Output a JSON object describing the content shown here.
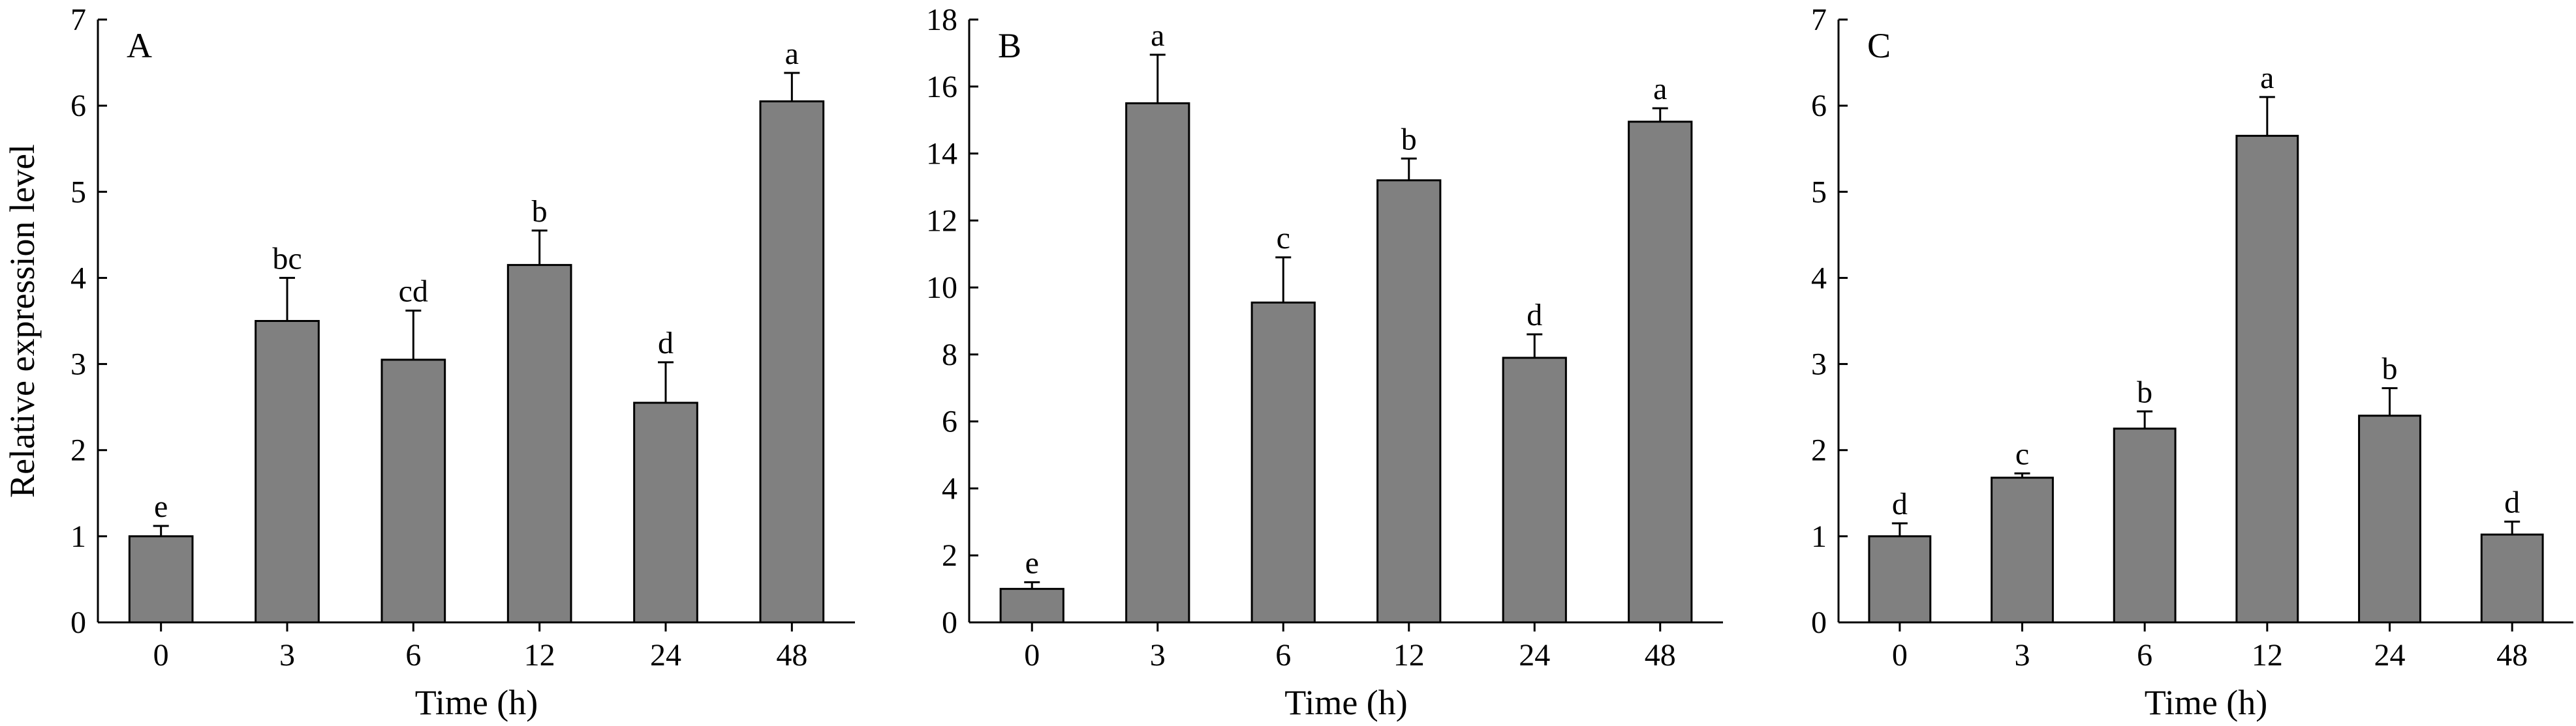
{
  "chart_data": [
    {
      "type": "bar",
      "panel": "A",
      "categories": [
        "0",
        "3",
        "6",
        "12",
        "24",
        "48"
      ],
      "values": [
        1.0,
        3.5,
        3.05,
        4.15,
        2.55,
        6.05
      ],
      "errors": [
        0.12,
        0.5,
        0.57,
        0.4,
        0.47,
        0.33
      ],
      "labels": [
        "e",
        "bc",
        "cd",
        "b",
        "d",
        "a"
      ],
      "xlabel": "Time (h)",
      "ylabel": "Relative expression level",
      "ylim": [
        0,
        7
      ],
      "yticks": [
        0,
        1,
        2,
        3,
        4,
        5,
        6,
        7
      ],
      "bar_color": "#808080",
      "grid": false
    },
    {
      "type": "bar",
      "panel": "B",
      "categories": [
        "0",
        "3",
        "6",
        "12",
        "24",
        "48"
      ],
      "values": [
        1.0,
        15.5,
        9.55,
        13.2,
        7.9,
        14.95
      ],
      "errors": [
        0.2,
        1.45,
        1.35,
        0.65,
        0.7,
        0.4
      ],
      "labels": [
        "e",
        "a",
        "c",
        "b",
        "d",
        "a"
      ],
      "xlabel": "Time (h)",
      "ylabel": "",
      "ylim": [
        0,
        18
      ],
      "yticks": [
        0,
        2,
        4,
        6,
        8,
        10,
        12,
        14,
        16,
        18
      ],
      "bar_color": "#808080",
      "grid": false
    },
    {
      "type": "bar",
      "panel": "C",
      "categories": [
        "0",
        "3",
        "6",
        "12",
        "24",
        "48"
      ],
      "values": [
        1.0,
        1.68,
        2.25,
        5.65,
        2.4,
        1.02
      ],
      "errors": [
        0.15,
        0.05,
        0.2,
        0.45,
        0.32,
        0.15
      ],
      "labels": [
        "d",
        "c",
        "b",
        "a",
        "b",
        "d"
      ],
      "xlabel": "Time (h)",
      "ylabel": "",
      "ylim": [
        0,
        7
      ],
      "yticks": [
        0,
        1,
        2,
        3,
        4,
        5,
        6,
        7
      ],
      "bar_color": "#808080",
      "grid": false
    }
  ]
}
